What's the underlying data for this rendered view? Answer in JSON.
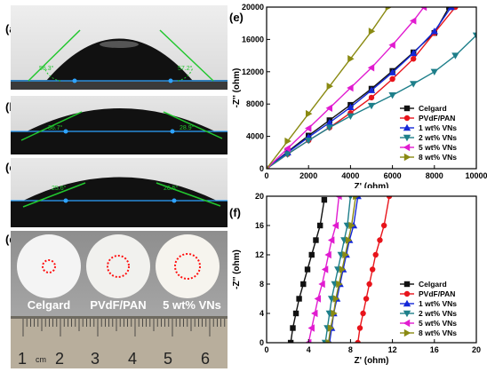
{
  "panels": {
    "a": {
      "label": "(a)",
      "angle_left": "56.3°",
      "angle_right": "57.2°"
    },
    "b": {
      "label": "(b)",
      "angle_left": "36.7°",
      "angle_right": "28.9°"
    },
    "c": {
      "label": "(c)",
      "angle_left": "25.6°",
      "angle_right": "26.5°"
    },
    "d": {
      "label": "(d)",
      "samples": [
        "Celgard",
        "PVdF/PAN",
        "5 wt% VNs"
      ],
      "ruler_numbers": [
        "1",
        "2",
        "3",
        "4",
        "5",
        "6"
      ],
      "ruler_unit": "cm"
    },
    "e": {
      "label": "(e)"
    },
    "f": {
      "label": "(f)"
    }
  },
  "chart_data": [
    {
      "type": "line",
      "panel": "e",
      "xlabel": "Z' (ohm)",
      "ylabel": "-Z'' (ohm)",
      "xlim": [
        0,
        10000
      ],
      "ylim": [
        0,
        20000
      ],
      "xticks": [
        "0",
        "2000",
        "4000",
        "6000",
        "8000",
        "10000"
      ],
      "yticks": [
        "0",
        "4000",
        "8000",
        "12000",
        "16000",
        "20000"
      ],
      "legend_position": "center-right",
      "series": [
        {
          "name": "Celgard",
          "color": "#111111",
          "marker": "square",
          "x": [
            0,
            1000,
            2000,
            3000,
            4000,
            5000,
            6000,
            7000,
            8000,
            8700
          ],
          "y": [
            0,
            2100,
            4100,
            6000,
            7900,
            9900,
            12100,
            14400,
            16800,
            20000
          ]
        },
        {
          "name": "PVdF/PAN",
          "color": "#e8141b",
          "marker": "circle",
          "x": [
            0,
            1000,
            2000,
            3000,
            4000,
            5000,
            6000,
            7000,
            8000,
            9000
          ],
          "y": [
            0,
            1800,
            3500,
            5100,
            6900,
            8800,
            11100,
            13600,
            16800,
            20000
          ]
        },
        {
          "name": "1 wt% VNs",
          "color": "#1428d8",
          "marker": "triangle-up",
          "x": [
            0,
            1000,
            2000,
            3000,
            4000,
            5000,
            6000,
            7000,
            8000,
            8800
          ],
          "y": [
            0,
            2000,
            3900,
            5700,
            7600,
            9700,
            11900,
            14300,
            17000,
            20000
          ]
        },
        {
          "name": "2 wt% VNs",
          "color": "#1e7f8a",
          "marker": "triangle-down",
          "x": [
            0,
            1000,
            2000,
            3000,
            4000,
            5000,
            6000,
            7000,
            8000,
            9000,
            10000
          ],
          "y": [
            0,
            1800,
            3500,
            5100,
            6500,
            7800,
            9100,
            10500,
            12000,
            14000,
            16500
          ]
        },
        {
          "name": "5 wt% VNs",
          "color": "#e11bd0",
          "marker": "triangle-left",
          "x": [
            0,
            1000,
            2000,
            3000,
            4000,
            5000,
            6000,
            7000,
            7500
          ],
          "y": [
            0,
            2500,
            5000,
            7500,
            10000,
            12500,
            15300,
            18300,
            20000
          ]
        },
        {
          "name": "8 wt% VNs",
          "color": "#8a8a12",
          "marker": "triangle-right",
          "x": [
            0,
            1000,
            2000,
            3000,
            4000,
            5000,
            5800
          ],
          "y": [
            0,
            3400,
            6800,
            10200,
            13600,
            17000,
            20000
          ]
        }
      ]
    },
    {
      "type": "line",
      "panel": "f",
      "xlabel": "Z' (ohm)",
      "ylabel": "-Z'' (ohm)",
      "xlim": [
        0,
        20
      ],
      "ylim": [
        0,
        20
      ],
      "xticks": [
        "0",
        "4",
        "8",
        "12",
        "16",
        "20"
      ],
      "yticks": [
        "0",
        "4",
        "8",
        "12",
        "16",
        "20"
      ],
      "legend_position": "lower-right",
      "series": [
        {
          "name": "Celgard",
          "color": "#111111",
          "marker": "square",
          "x": [
            2.3,
            2.5,
            2.8,
            3.1,
            3.5,
            3.9,
            4.3,
            4.7,
            5.1,
            5.5
          ],
          "y": [
            0,
            2,
            4,
            6,
            8,
            10,
            12,
            14,
            16,
            19.5
          ]
        },
        {
          "name": "PVdF/PAN",
          "color": "#e8141b",
          "marker": "circle",
          "x": [
            8.7,
            8.9,
            9.2,
            9.5,
            9.8,
            10.1,
            10.4,
            10.8,
            11.2,
            11.7
          ],
          "y": [
            0,
            2,
            4,
            6,
            8,
            10,
            12,
            14,
            16,
            20
          ]
        },
        {
          "name": "1 wt% VNs",
          "color": "#1428d8",
          "marker": "triangle-up",
          "x": [
            6.0,
            6.2,
            6.4,
            6.7,
            7.0,
            7.3,
            7.6,
            7.9,
            8.3,
            8.7
          ],
          "y": [
            0,
            2,
            4,
            6,
            8,
            10,
            12,
            14,
            16,
            20
          ]
        },
        {
          "name": "2 wt% VNs",
          "color": "#1e7f8a",
          "marker": "triangle-down",
          "x": [
            5.6,
            5.8,
            6.0,
            6.2,
            6.5,
            6.8,
            7.1,
            7.4,
            7.7,
            8.0
          ],
          "y": [
            0,
            2,
            4,
            6,
            8,
            10,
            12,
            14,
            16,
            20
          ]
        },
        {
          "name": "5 wt% VNs",
          "color": "#e11bd0",
          "marker": "triangle-left",
          "x": [
            4.0,
            4.3,
            4.6,
            4.9,
            5.3,
            5.6,
            5.9,
            6.2,
            6.6,
            6.9
          ],
          "y": [
            0,
            2,
            4,
            6,
            8,
            10,
            12,
            14,
            16,
            20
          ]
        },
        {
          "name": "8 wt% VNs",
          "color": "#8a8a12",
          "marker": "triangle-right",
          "x": [
            5.9,
            6.1,
            6.4,
            6.6,
            6.9,
            7.2,
            7.5,
            7.8,
            8.1,
            8.5
          ],
          "y": [
            0,
            2,
            4,
            6,
            8,
            10,
            12,
            14,
            16,
            20
          ]
        }
      ]
    }
  ]
}
